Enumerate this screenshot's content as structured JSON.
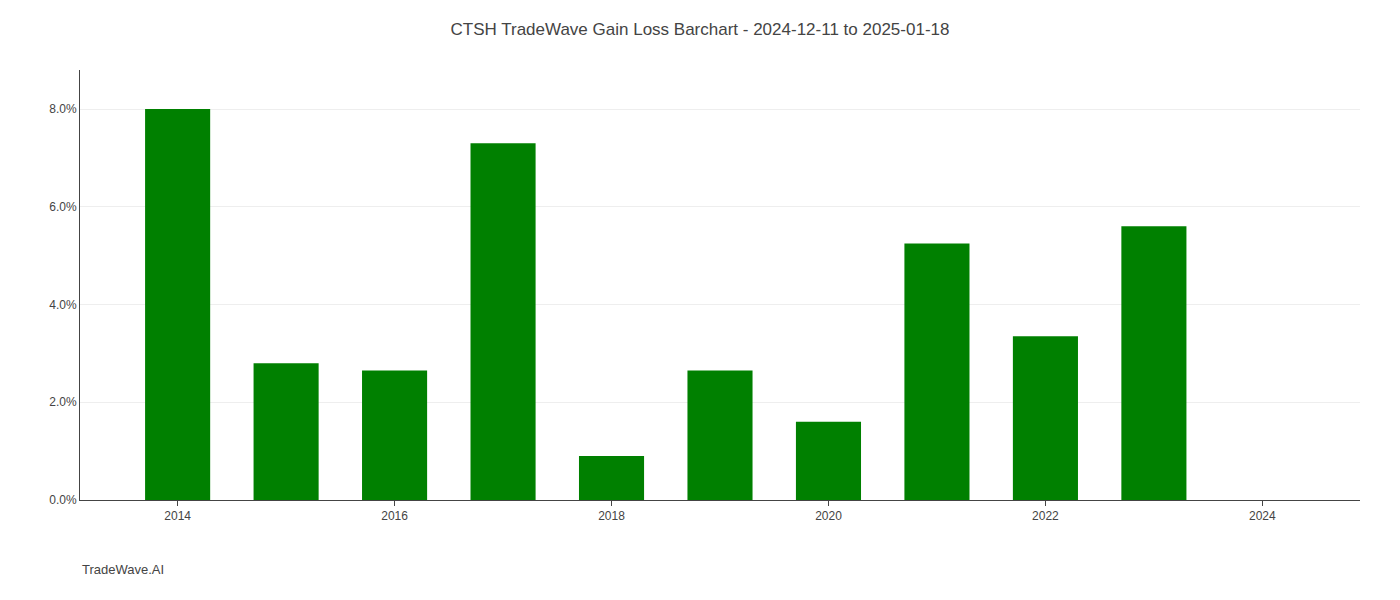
{
  "chart_data": {
    "type": "bar",
    "title": "CTSH TradeWave Gain Loss Barchart - 2024-12-11 to 2025-01-18",
    "annotations": [
      "TradeWave.AI"
    ],
    "x": [
      2014,
      2015,
      2016,
      2017,
      2018,
      2019,
      2020,
      2021,
      2022,
      2023
    ],
    "values": [
      0.08,
      0.028,
      0.0265,
      0.073,
      0.009,
      0.0265,
      0.016,
      0.0525,
      0.0335,
      0.056
    ],
    "color": "#008000",
    "xlim": [
      2013.1,
      2024.9
    ],
    "xticks": [
      2014,
      2016,
      2018,
      2020,
      2022,
      2024
    ],
    "ylim": [
      0,
      0.088
    ],
    "yticks": [
      {
        "value": 0.0,
        "label": "0.0%"
      },
      {
        "value": 0.02,
        "label": "2.0%"
      },
      {
        "value": 0.04,
        "label": "4.0%"
      },
      {
        "value": 0.06,
        "label": "6.0%"
      },
      {
        "value": 0.08,
        "label": "8.0%"
      }
    ],
    "grid": true
  }
}
